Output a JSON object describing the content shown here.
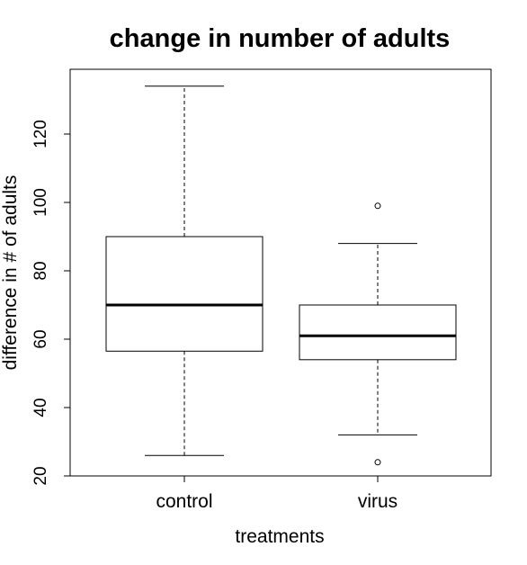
{
  "chart_data": {
    "type": "boxplot",
    "title": "change in number of adults",
    "xlabel": "treatments",
    "ylabel": "difference in # of adults",
    "categories": [
      "control",
      "virus"
    ],
    "ylim": [
      20,
      140
    ],
    "yticks": [
      "20",
      "40",
      "60",
      "80",
      "100",
      "120"
    ],
    "grid": false,
    "boxes": [
      {
        "category": "control",
        "whisker_low": 26,
        "q1": 56.5,
        "median": 70,
        "q3": 90,
        "whisker_high": 134,
        "outliers": []
      },
      {
        "category": "virus",
        "whisker_low": 32,
        "q1": 54,
        "median": 61,
        "q3": 70,
        "whisker_high": 88,
        "outliers": [
          99,
          24
        ]
      }
    ]
  }
}
